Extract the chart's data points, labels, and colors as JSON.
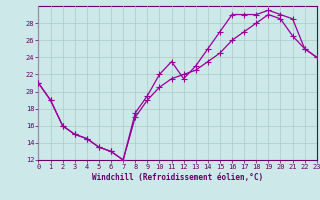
{
  "bg_color": "#cce8e8",
  "line_color": "#990099",
  "grid_color": "#aacccc",
  "axis_label_color": "#660066",
  "xlim": [
    0,
    23
  ],
  "ylim": [
    12,
    30
  ],
  "xlabel": "Windchill (Refroidissement éolien,°C)",
  "xticks": [
    0,
    1,
    2,
    3,
    4,
    5,
    6,
    7,
    8,
    9,
    10,
    11,
    12,
    13,
    14,
    15,
    16,
    17,
    18,
    19,
    20,
    21,
    22,
    23
  ],
  "yticks": [
    12,
    14,
    16,
    18,
    20,
    22,
    24,
    26,
    28
  ],
  "trace1_x": [
    0,
    1,
    2,
    3,
    4,
    5,
    6,
    7,
    8,
    9,
    10,
    11,
    12,
    13,
    14,
    15,
    16,
    17,
    18,
    19,
    20,
    21,
    22,
    23
  ],
  "trace1_y": [
    21,
    19,
    16,
    15,
    14.5,
    13.5,
    13,
    12,
    17.5,
    19.5,
    22,
    23.5,
    21.5,
    23,
    25,
    27,
    29,
    29,
    29,
    29.5,
    29,
    28.5,
    25,
    24
  ],
  "trace2_x": [
    0,
    1,
    2,
    3,
    4,
    5,
    6,
    7,
    8,
    9,
    10,
    11,
    12,
    13,
    14,
    15,
    16,
    17,
    18,
    19,
    20,
    21,
    22,
    23
  ],
  "trace2_y": [
    21,
    19,
    16,
    15,
    14.5,
    13.5,
    13,
    12,
    17,
    19,
    20.5,
    21.5,
    22,
    22.5,
    23.5,
    24.5,
    26,
    27,
    28,
    29,
    28.5,
    26.5,
    25,
    24
  ],
  "tick_fontsize": 5,
  "xlabel_fontsize": 5.5,
  "linewidth": 0.9,
  "markersize": 3
}
